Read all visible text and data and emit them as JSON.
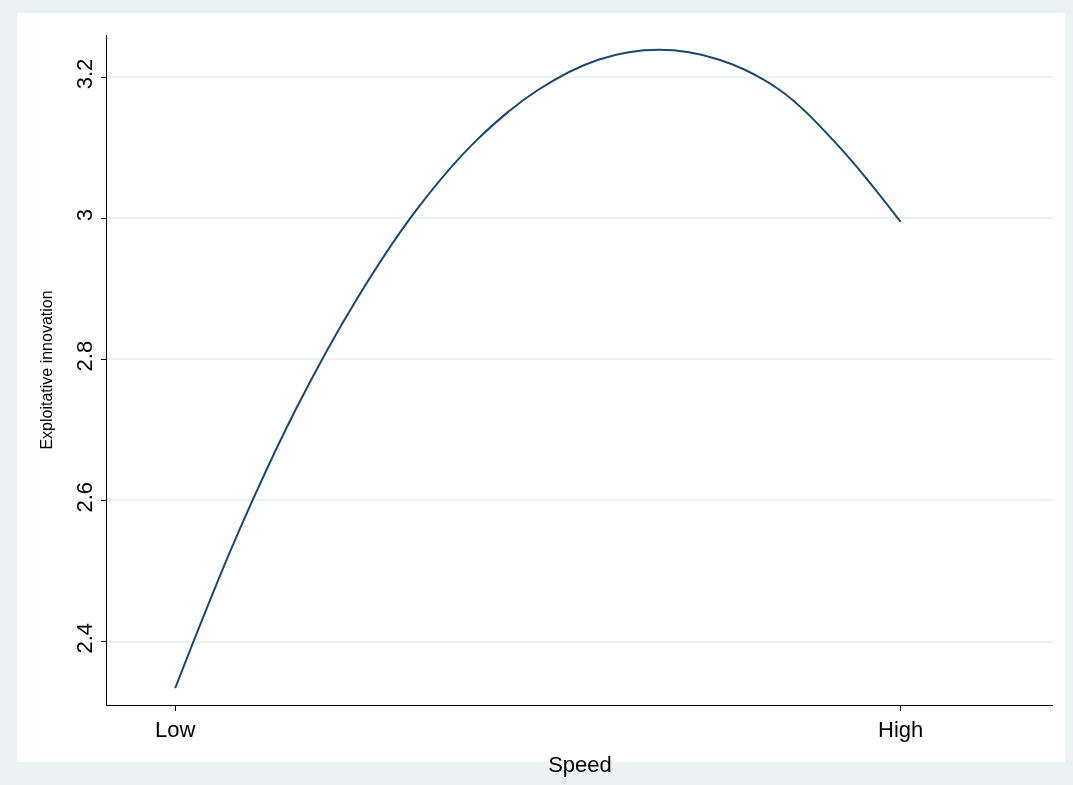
{
  "chart_data": {
    "type": "line",
    "xlabel": "Speed",
    "ylabel": "Exploitative innovation",
    "categories": [
      "Low",
      null,
      null,
      null,
      null,
      null,
      null,
      null,
      null,
      null,
      null,
      null,
      "High"
    ],
    "series": [
      {
        "color": "#1a476f",
        "values": [
          2.334,
          2.546,
          2.73,
          2.885,
          3.013,
          3.112,
          3.182,
          3.225,
          3.239,
          3.225,
          3.182,
          3.1,
          2.995
        ]
      }
    ],
    "ylim": [
      2.31,
      3.26
    ],
    "yticks": [
      2.4,
      2.6,
      2.8,
      3,
      3.2
    ],
    "grid": "y",
    "legend": false,
    "marker": "none",
    "line_style": "solid"
  }
}
